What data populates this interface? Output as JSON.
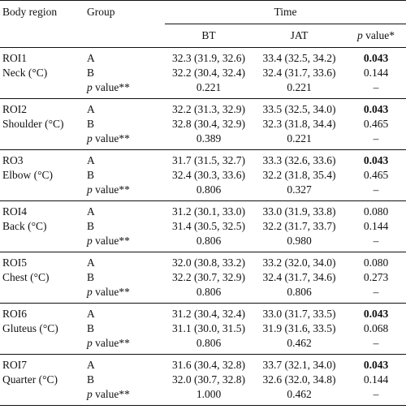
{
  "headers": {
    "body_region": "Body region",
    "group": "Group",
    "time": "Time",
    "bt": "BT",
    "jat": "JAT",
    "p_value_italic": "p",
    "p_value_rest": " value*"
  },
  "p_label_italic": "p",
  "p_label_rest": " value**",
  "regions": [
    {
      "roi": "ROI1",
      "name": "Neck (°C)",
      "a": {
        "label": "A",
        "bt": "32.3 (31.9, 32.6)",
        "jat": "33.4 (32.5, 34.2)",
        "p": "0.043"
      },
      "b": {
        "label": "B",
        "bt": "32.2 (30.4, 32.4)",
        "jat": "32.4 (31.7, 33.6)",
        "p": "0.144"
      },
      "pv": {
        "bt": "0.221",
        "jat": "0.221",
        "p": "–"
      }
    },
    {
      "roi": "ROI2",
      "name": "Shoulder (°C)",
      "a": {
        "label": "A",
        "bt": "32.2 (31.3, 32.9)",
        "jat": "33.5 (32.5, 34.0)",
        "p": "0.043"
      },
      "b": {
        "label": "B",
        "bt": "32.8 (30.4, 32.9)",
        "jat": "32.3 (31.8, 34.4)",
        "p": "0.465"
      },
      "pv": {
        "bt": "0.389",
        "jat": "0.221",
        "p": "–"
      }
    },
    {
      "roi": "RO3",
      "name": "Elbow (°C)",
      "a": {
        "label": "A",
        "bt": "31.7 (31.5, 32.7)",
        "jat": "33.3 (32.6, 33.6)",
        "p": "0.043"
      },
      "b": {
        "label": "B",
        "bt": "32.4 (30.3, 33.6)",
        "jat": "32.2 (31.8, 35.4)",
        "p": "0.465"
      },
      "pv": {
        "bt": "0.806",
        "jat": "0.327",
        "p": "–"
      }
    },
    {
      "roi": "ROI4",
      "name": "Back (°C)",
      "a": {
        "label": "A",
        "bt": "31.2 (30.1, 33.0)",
        "jat": "33.0 (31.9, 33.8)",
        "p": "0.080"
      },
      "b": {
        "label": "B",
        "bt": "31.4 (30.5, 32.5)",
        "jat": "32.2 (31.7, 33.7)",
        "p": "0.144"
      },
      "pv": {
        "bt": "0.806",
        "jat": "0.980",
        "p": "–"
      }
    },
    {
      "roi": "ROI5",
      "name": "Chest (°C)",
      "a": {
        "label": "A",
        "bt": "32.0 (30.8, 33.2)",
        "jat": "33.2 (32.0, 34.0)",
        "p": "0.080"
      },
      "b": {
        "label": "B",
        "bt": "32.2 (30.7, 32.9)",
        "jat": "32.4 (31.7, 34.6)",
        "p": "0.273"
      },
      "pv": {
        "bt": "0.806",
        "jat": "0.806",
        "p": "–"
      }
    },
    {
      "roi": "ROI6",
      "name": "Gluteus (°C)",
      "a": {
        "label": "A",
        "bt": "31.2 (30.4, 32.4)",
        "jat": "33.0 (31.7, 33.5)",
        "p": "0.043"
      },
      "b": {
        "label": "B",
        "bt": "31.1 (30.0, 31.5)",
        "jat": "31.9 (31.6, 33.5)",
        "p": "0.068"
      },
      "pv": {
        "bt": "0.806",
        "jat": "0.462",
        "p": "–"
      }
    },
    {
      "roi": "ROI7",
      "name": "Quarter (°C)",
      "a": {
        "label": "A",
        "bt": "31.6 (30.4, 32.8)",
        "jat": "33.7 (32.1, 34.0)",
        "p": "0.043"
      },
      "b": {
        "label": "B",
        "bt": "32.0 (30.7, 32.8)",
        "jat": "32.6 (32.0, 34.8)",
        "p": "0.144"
      },
      "pv": {
        "bt": "1.000",
        "jat": "0.462",
        "p": "–"
      }
    }
  ],
  "bold_p_values": [
    "0.043"
  ]
}
